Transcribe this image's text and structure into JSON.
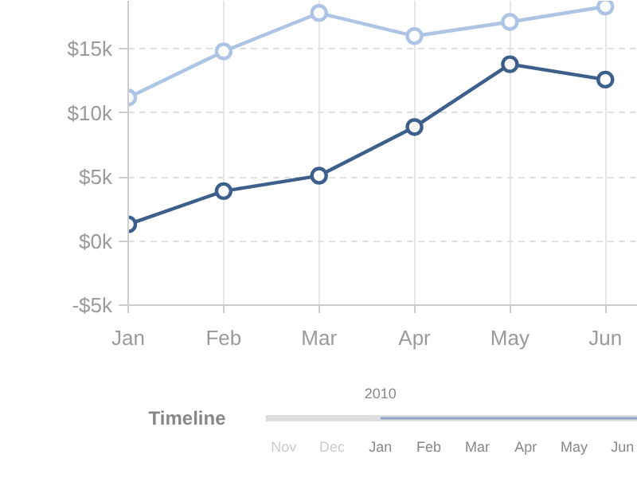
{
  "chart_data": [
    {
      "type": "line",
      "categories": [
        "Jan",
        "Feb",
        "Mar",
        "Apr",
        "May",
        "Jun"
      ],
      "series": [
        {
          "color": "#aec4e4",
          "values": [
            11.2,
            14.8,
            17.8,
            16,
            17.1,
            18.3
          ]
        },
        {
          "color": "#3d5f8c",
          "values": [
            1.3,
            3.9,
            5.1,
            8.9,
            13.8,
            12.6
          ]
        }
      ],
      "ylim": [
        -5,
        18.75
      ],
      "yticks": [
        {
          "value": -5,
          "label": "-$5k"
        },
        {
          "value": 0,
          "label": "$0k"
        },
        {
          "value": 5,
          "label": "$5k"
        },
        {
          "value": 10,
          "label": "$10k"
        },
        {
          "value": 15,
          "label": "$15k"
        }
      ],
      "grid": true,
      "marker": "circle",
      "line_style": "solid"
    },
    {
      "type": "other",
      "title": "Timeline",
      "categories": [
        "Nov",
        "Dec",
        "Jan",
        "Feb",
        "Mar",
        "Apr",
        "May",
        "Jun"
      ],
      "annotations": [
        {
          "text": "2010",
          "x": "Jan"
        }
      ]
    }
  ]
}
